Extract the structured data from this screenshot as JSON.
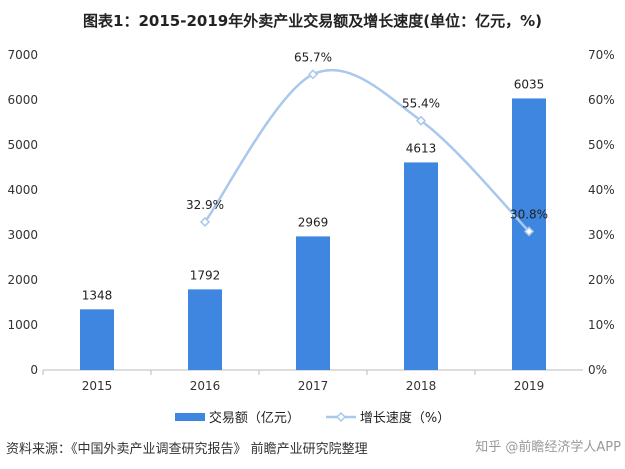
{
  "chart_data": {
    "type": "bar+line",
    "title": "图表1：2015-2019年外卖产业交易额及增长速度(单位：亿元，%)",
    "categories": [
      "2015",
      "2016",
      "2017",
      "2018",
      "2019"
    ],
    "series": [
      {
        "name": "交易额（亿元）",
        "type": "bar",
        "axis": "left",
        "values": [
          1348,
          1792,
          2969,
          4613,
          6035
        ],
        "labels": [
          "1348",
          "1792",
          "2969",
          "4613",
          "6035"
        ],
        "color": "#3f86e0"
      },
      {
        "name": "增长速度（%）",
        "type": "line",
        "axis": "right",
        "values": [
          null,
          32.9,
          65.7,
          55.4,
          30.8
        ],
        "labels": [
          "",
          "32.9%",
          "65.7%",
          "55.4%",
          "30.8%"
        ],
        "color": "#a9c8ec"
      }
    ],
    "ylim": [
      0,
      7000
    ],
    "yticks": [
      "0",
      "1000",
      "2000",
      "3000",
      "4000",
      "5000",
      "6000",
      "7000"
    ],
    "y2lim": [
      0,
      70
    ],
    "y2ticks": [
      "0%",
      "10%",
      "20%",
      "30%",
      "40%",
      "50%",
      "60%",
      "70%"
    ],
    "grid": false,
    "legend": "bottom"
  },
  "footer": {
    "source": "资料来源：《中国外卖产业调查研究报告》 前瞻产业研究院整理",
    "watermark": "知乎 @前瞻经济学人APP"
  }
}
